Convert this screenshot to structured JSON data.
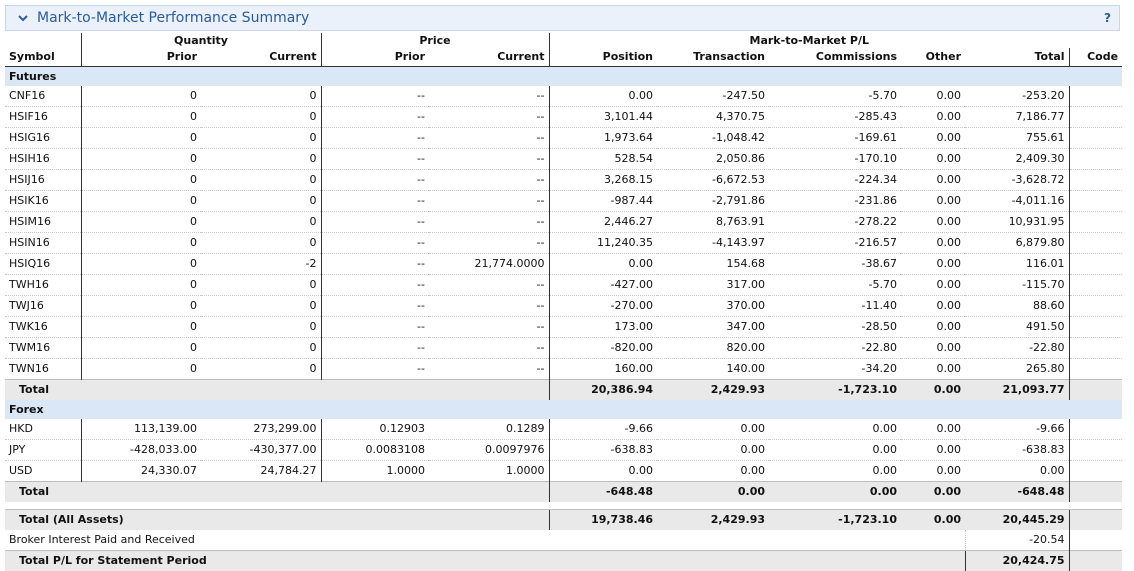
{
  "panel": {
    "title": "Mark-to-Market Performance Summary",
    "help": "?"
  },
  "headers": {
    "group": {
      "quantity": "Quantity",
      "price": "Price",
      "mtm": "Mark-to-Market P/L"
    },
    "cols": [
      "Symbol",
      "Prior",
      "Current",
      "Prior",
      "Current",
      "Position",
      "Transaction",
      "Commissions",
      "Other",
      "Total",
      "Code"
    ]
  },
  "futures": {
    "label": "Futures",
    "rows": [
      [
        "CNF16",
        "0",
        "0",
        "--",
        "--",
        "0.00",
        "-247.50",
        "-5.70",
        "0.00",
        "-253.20",
        ""
      ],
      [
        "HSIF16",
        "0",
        "0",
        "--",
        "--",
        "3,101.44",
        "4,370.75",
        "-285.43",
        "0.00",
        "7,186.77",
        ""
      ],
      [
        "HSIG16",
        "0",
        "0",
        "--",
        "--",
        "1,973.64",
        "-1,048.42",
        "-169.61",
        "0.00",
        "755.61",
        ""
      ],
      [
        "HSIH16",
        "0",
        "0",
        "--",
        "--",
        "528.54",
        "2,050.86",
        "-170.10",
        "0.00",
        "2,409.30",
        ""
      ],
      [
        "HSIJ16",
        "0",
        "0",
        "--",
        "--",
        "3,268.15",
        "-6,672.53",
        "-224.34",
        "0.00",
        "-3,628.72",
        ""
      ],
      [
        "HSIK16",
        "0",
        "0",
        "--",
        "--",
        "-987.44",
        "-2,791.86",
        "-231.86",
        "0.00",
        "-4,011.16",
        ""
      ],
      [
        "HSIM16",
        "0",
        "0",
        "--",
        "--",
        "2,446.27",
        "8,763.91",
        "-278.22",
        "0.00",
        "10,931.95",
        ""
      ],
      [
        "HSIN16",
        "0",
        "0",
        "--",
        "--",
        "11,240.35",
        "-4,143.97",
        "-216.57",
        "0.00",
        "6,879.80",
        ""
      ],
      [
        "HSIQ16",
        "0",
        "-2",
        "--",
        "21,774.0000",
        "0.00",
        "154.68",
        "-38.67",
        "0.00",
        "116.01",
        ""
      ],
      [
        "TWH16",
        "0",
        "0",
        "--",
        "--",
        "-427.00",
        "317.00",
        "-5.70",
        "0.00",
        "-115.70",
        ""
      ],
      [
        "TWJ16",
        "0",
        "0",
        "--",
        "--",
        "-270.00",
        "370.00",
        "-11.40",
        "0.00",
        "88.60",
        ""
      ],
      [
        "TWK16",
        "0",
        "0",
        "--",
        "--",
        "173.00",
        "347.00",
        "-28.50",
        "0.00",
        "491.50",
        ""
      ],
      [
        "TWM16",
        "0",
        "0",
        "--",
        "--",
        "-820.00",
        "820.00",
        "-22.80",
        "0.00",
        "-22.80",
        ""
      ],
      [
        "TWN16",
        "0",
        "0",
        "--",
        "--",
        "160.00",
        "140.00",
        "-34.20",
        "0.00",
        "265.80",
        ""
      ]
    ],
    "total": [
      "Total",
      "20,386.94",
      "2,429.93",
      "-1,723.10",
      "0.00",
      "21,093.77"
    ]
  },
  "forex": {
    "label": "Forex",
    "rows": [
      [
        "HKD",
        "113,139.00",
        "273,299.00",
        "0.12903",
        "0.1289",
        "-9.66",
        "0.00",
        "0.00",
        "0.00",
        "-9.66",
        ""
      ],
      [
        "JPY",
        "-428,033.00",
        "-430,377.00",
        "0.0083108",
        "0.0097976",
        "-638.83",
        "0.00",
        "0.00",
        "0.00",
        "-638.83",
        ""
      ],
      [
        "USD",
        "24,330.07",
        "24,784.27",
        "1.0000",
        "1.0000",
        "0.00",
        "0.00",
        "0.00",
        "0.00",
        "0.00",
        ""
      ]
    ],
    "total": [
      "Total",
      "-648.48",
      "0.00",
      "0.00",
      "0.00",
      "-648.48"
    ]
  },
  "all_assets": [
    "Total (All Assets)",
    "19,738.46",
    "2,429.93",
    "-1,723.10",
    "0.00",
    "20,445.29"
  ],
  "broker_interest": {
    "label": "Broker Interest Paid and Received",
    "value": "-20.54"
  },
  "statement_total": {
    "label": "Total P/L for Statement Period",
    "value": "20,424.75"
  }
}
